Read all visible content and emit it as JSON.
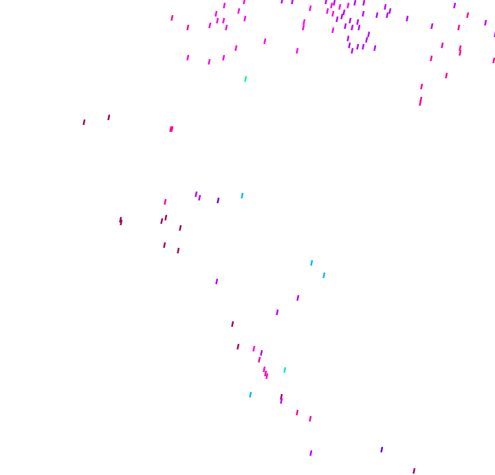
{
  "map": {
    "background": "#ffffff",
    "colors": {
      "magenta": "#ff00e6",
      "violet": "#b400ff",
      "maroon": "#a0005a",
      "pink": "#ff0090",
      "cyan": "#00b4ff",
      "teal": "#00e6c8",
      "green": "#00ff80",
      "blue": "#5a00ff"
    }
  }
}
